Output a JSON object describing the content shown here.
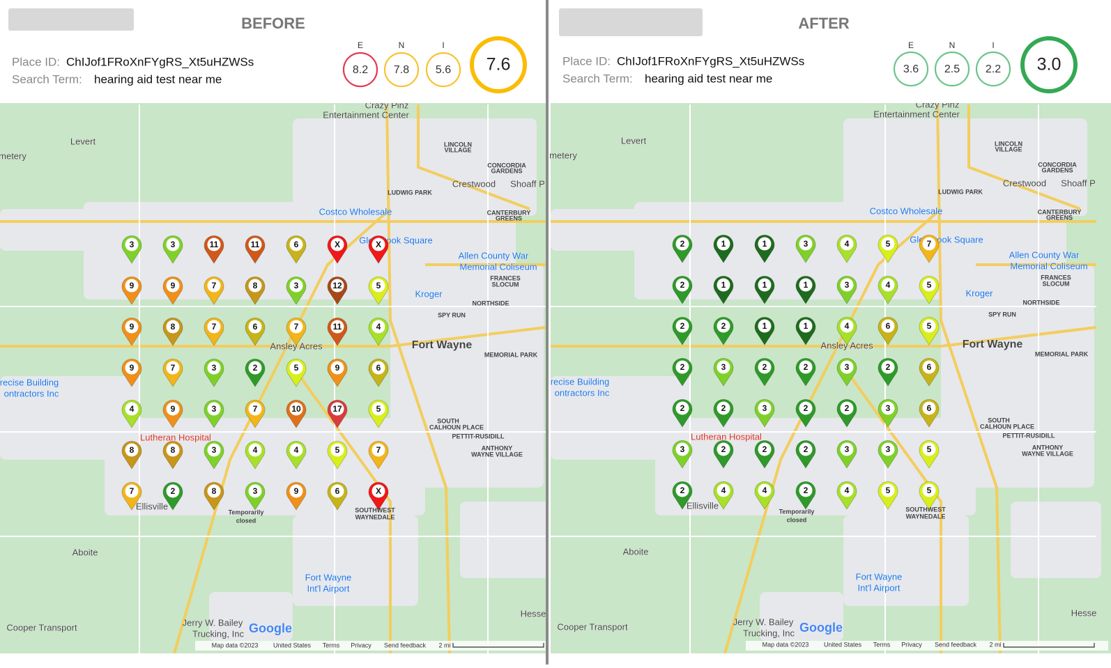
{
  "panels": [
    {
      "title": "BEFORE",
      "place_id_label": "Place ID:",
      "place_id": "ChIJof1FRoXnFYgRS_Xt5uHZWSs",
      "search_term_label": "Search Term:",
      "search_term": "hearing aid test near me",
      "scores": [
        {
          "label": "E",
          "value": "8.2",
          "color": "#e5384f"
        },
        {
          "label": "N",
          "value": "7.8",
          "color": "#f8c233"
        },
        {
          "label": "I",
          "value": "5.6",
          "color": "#f8c233"
        }
      ],
      "overall": {
        "value": "7.6",
        "color": "#fbbc05"
      },
      "grid": [
        [
          3,
          3,
          11,
          11,
          6,
          "X",
          "X"
        ],
        [
          9,
          9,
          7,
          8,
          3,
          12,
          5
        ],
        [
          9,
          8,
          7,
          6,
          7,
          11,
          4
        ],
        [
          9,
          7,
          3,
          2,
          5,
          9,
          6
        ],
        [
          4,
          9,
          3,
          7,
          10,
          17,
          5
        ],
        [
          8,
          8,
          3,
          4,
          4,
          5,
          7
        ],
        [
          7,
          2,
          8,
          3,
          9,
          6,
          "X"
        ]
      ]
    },
    {
      "title": "AFTER",
      "place_id_label": "Place ID:",
      "place_id": "ChIJof1FRoXnFYgRS_Xt5uHZWSs",
      "search_term_label": "Search Term:",
      "search_term": "hearing aid test near me",
      "scores": [
        {
          "label": "E",
          "value": "3.6",
          "color": "#6cc48a"
        },
        {
          "label": "N",
          "value": "2.5",
          "color": "#6cc48a"
        },
        {
          "label": "I",
          "value": "2.2",
          "color": "#6cc48a"
        }
      ],
      "overall": {
        "value": "3.0",
        "color": "#34a853"
      },
      "grid": [
        [
          2,
          1,
          1,
          3,
          4,
          5,
          7
        ],
        [
          2,
          1,
          1,
          1,
          3,
          4,
          5
        ],
        [
          2,
          2,
          1,
          1,
          4,
          6,
          5
        ],
        [
          2,
          3,
          2,
          2,
          3,
          2,
          6
        ],
        [
          2,
          2,
          3,
          2,
          2,
          3,
          6
        ],
        [
          3,
          2,
          2,
          2,
          3,
          3,
          5
        ],
        [
          2,
          4,
          4,
          2,
          4,
          5,
          5
        ]
      ]
    }
  ],
  "map_labels": [
    "Crazy Pinz",
    "Entertainment Center",
    "Levert",
    "metery",
    "LINCOLN",
    "VILLAGE",
    "CONCORDIA",
    "GARDENS",
    "Crestwood",
    "Shoaff P",
    "LUDWIG PARK",
    "Costco Wholesale",
    "CANTERBURY",
    "GREENS",
    "Glenbrook Square",
    "Allen County War",
    "Memorial Coliseum",
    "FRANCES",
    "SLOCUM",
    "Kroger",
    "NORTHSIDE",
    "SPY RUN",
    "Ansley Acres",
    "Fort Wayne",
    "MEMORIAL PARK",
    "recise Building",
    "ontractors Inc",
    "Lutheran Hospital",
    "SOUTH",
    "CALHOUN PLACE",
    "PETTIT-RUSIDILL",
    "ANTHONY",
    "WAYNE VILLAGE",
    "Ellisville",
    "Temporarily",
    "closed",
    "SOUTHWEST",
    "WAYNEDALE",
    "Aboite",
    "Fort Wayne",
    "Int'l Airport",
    "Hesse",
    "Jerry W. Bailey",
    "Trucking, Inc",
    "Cooper Transport",
    "Google"
  ],
  "map_footer": [
    "Map data ©2023",
    "United States",
    "Terms",
    "Privacy",
    "Send feedback",
    "2 mi"
  ]
}
